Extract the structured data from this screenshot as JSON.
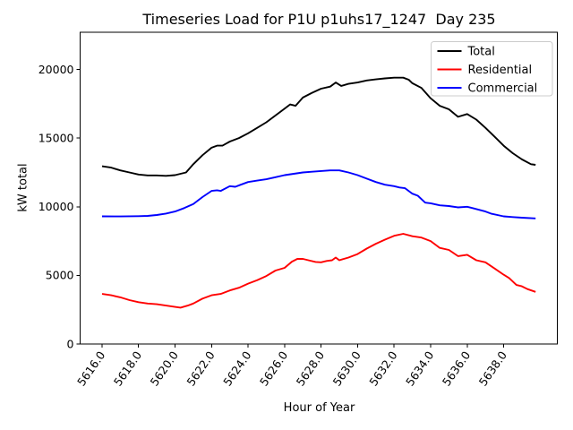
{
  "chart_data": {
    "type": "line",
    "title": "Timeseries Load for P1U p1uhs17_1247  Day 235",
    "xlabel": "Hour of Year",
    "ylabel": "kW total",
    "xlim": [
      5614.8,
      5640.95
    ],
    "ylim": [
      0,
      22710
    ],
    "grid": false,
    "legend_position": "upper right",
    "xtick_labels": [
      "5616.0",
      "5618.0",
      "5620.0",
      "5622.0",
      "5624.0",
      "5626.0",
      "5628.0",
      "5630.0",
      "5632.0",
      "5634.0",
      "5636.0",
      "5638.0"
    ],
    "ytick_labels": [
      "0",
      "5000",
      "10000",
      "15000",
      "20000"
    ],
    "series": [
      {
        "name": "Total",
        "color": "#000000",
        "points": [
          [
            5616,
            12950
          ],
          [
            5616.5,
            12850
          ],
          [
            5617,
            12650
          ],
          [
            5617.5,
            12500
          ],
          [
            5618,
            12350
          ],
          [
            5618.5,
            12280
          ],
          [
            5619,
            12280
          ],
          [
            5619.5,
            12250
          ],
          [
            5620,
            12300
          ],
          [
            5620.6,
            12500
          ],
          [
            5621,
            13100
          ],
          [
            5621.5,
            13750
          ],
          [
            5622,
            14300
          ],
          [
            5622.3,
            14450
          ],
          [
            5622.6,
            14450
          ],
          [
            5623,
            14750
          ],
          [
            5623.5,
            15000
          ],
          [
            5624,
            15350
          ],
          [
            5624.5,
            15750
          ],
          [
            5625,
            16150
          ],
          [
            5625.5,
            16650
          ],
          [
            5626,
            17150
          ],
          [
            5626.3,
            17450
          ],
          [
            5626.6,
            17350
          ],
          [
            5627,
            17950
          ],
          [
            5627.5,
            18300
          ],
          [
            5628,
            18600
          ],
          [
            5628.5,
            18750
          ],
          [
            5628.8,
            19050
          ],
          [
            5629.1,
            18800
          ],
          [
            5629.5,
            18950
          ],
          [
            5630,
            19050
          ],
          [
            5630.5,
            19200
          ],
          [
            5631,
            19280
          ],
          [
            5631.5,
            19350
          ],
          [
            5632,
            19400
          ],
          [
            5632.5,
            19400
          ],
          [
            5632.8,
            19250
          ],
          [
            5633,
            19000
          ],
          [
            5633.5,
            18650
          ],
          [
            5634,
            17900
          ],
          [
            5634.5,
            17350
          ],
          [
            5635,
            17100
          ],
          [
            5635.5,
            16550
          ],
          [
            5636,
            16750
          ],
          [
            5636.5,
            16350
          ],
          [
            5637,
            15750
          ],
          [
            5637.5,
            15100
          ],
          [
            5638,
            14450
          ],
          [
            5638.5,
            13900
          ],
          [
            5639,
            13450
          ],
          [
            5639.5,
            13100
          ],
          [
            5639.75,
            13050
          ]
        ]
      },
      {
        "name": "Residential",
        "color": "#ff0000",
        "points": [
          [
            5616,
            3650
          ],
          [
            5616.5,
            3550
          ],
          [
            5617,
            3400
          ],
          [
            5617.5,
            3200
          ],
          [
            5618,
            3050
          ],
          [
            5618.5,
            2950
          ],
          [
            5619,
            2900
          ],
          [
            5619.5,
            2800
          ],
          [
            5620,
            2700
          ],
          [
            5620.3,
            2650
          ],
          [
            5620.7,
            2800
          ],
          [
            5621,
            2950
          ],
          [
            5621.5,
            3300
          ],
          [
            5622,
            3550
          ],
          [
            5622.5,
            3650
          ],
          [
            5623,
            3900
          ],
          [
            5623.5,
            4100
          ],
          [
            5624,
            4400
          ],
          [
            5624.5,
            4650
          ],
          [
            5625,
            4950
          ],
          [
            5625.5,
            5350
          ],
          [
            5626,
            5550
          ],
          [
            5626.4,
            6000
          ],
          [
            5626.7,
            6200
          ],
          [
            5627,
            6200
          ],
          [
            5627.3,
            6100
          ],
          [
            5627.7,
            5975
          ],
          [
            5628,
            5950
          ],
          [
            5628.3,
            6050
          ],
          [
            5628.6,
            6100
          ],
          [
            5628.8,
            6300
          ],
          [
            5629,
            6100
          ],
          [
            5629.5,
            6300
          ],
          [
            5630,
            6550
          ],
          [
            5630.5,
            6950
          ],
          [
            5631,
            7300
          ],
          [
            5631.5,
            7600
          ],
          [
            5632,
            7880
          ],
          [
            5632.5,
            8030
          ],
          [
            5633,
            7850
          ],
          [
            5633.5,
            7750
          ],
          [
            5634,
            7500
          ],
          [
            5634.5,
            7000
          ],
          [
            5635,
            6850
          ],
          [
            5635.5,
            6400
          ],
          [
            5636,
            6500
          ],
          [
            5636.5,
            6100
          ],
          [
            5637,
            5950
          ],
          [
            5637.5,
            5500
          ],
          [
            5638,
            5050
          ],
          [
            5638.3,
            4800
          ],
          [
            5638.7,
            4300
          ],
          [
            5639,
            4200
          ],
          [
            5639.3,
            4000
          ],
          [
            5639.75,
            3800
          ]
        ]
      },
      {
        "name": "Commercial",
        "color": "#0000ff",
        "points": [
          [
            5616,
            9300
          ],
          [
            5617,
            9290
          ],
          [
            5618,
            9310
          ],
          [
            5618.5,
            9330
          ],
          [
            5619,
            9400
          ],
          [
            5619.5,
            9500
          ],
          [
            5620,
            9650
          ],
          [
            5620.5,
            9900
          ],
          [
            5621,
            10200
          ],
          [
            5621.5,
            10700
          ],
          [
            5622,
            11150
          ],
          [
            5622.3,
            11200
          ],
          [
            5622.5,
            11150
          ],
          [
            5623,
            11500
          ],
          [
            5623.3,
            11450
          ],
          [
            5623.6,
            11600
          ],
          [
            5624,
            11800
          ],
          [
            5624.5,
            11900
          ],
          [
            5625,
            12000
          ],
          [
            5625.5,
            12150
          ],
          [
            5626,
            12300
          ],
          [
            5626.5,
            12400
          ],
          [
            5627,
            12500
          ],
          [
            5627.5,
            12550
          ],
          [
            5628,
            12600
          ],
          [
            5628.5,
            12650
          ],
          [
            5629,
            12650
          ],
          [
            5629.5,
            12500
          ],
          [
            5630,
            12300
          ],
          [
            5630.5,
            12050
          ],
          [
            5631,
            11800
          ],
          [
            5631.5,
            11600
          ],
          [
            5632,
            11500
          ],
          [
            5632.3,
            11400
          ],
          [
            5632.6,
            11350
          ],
          [
            5633,
            10950
          ],
          [
            5633.3,
            10800
          ],
          [
            5633.7,
            10300
          ],
          [
            5634,
            10250
          ],
          [
            5634.5,
            10100
          ],
          [
            5635,
            10050
          ],
          [
            5635.5,
            9950
          ],
          [
            5636,
            10000
          ],
          [
            5636.3,
            9900
          ],
          [
            5637,
            9650
          ],
          [
            5637.3,
            9500
          ],
          [
            5638,
            9300
          ],
          [
            5638.5,
            9250
          ],
          [
            5639,
            9200
          ],
          [
            5639.75,
            9150
          ]
        ]
      }
    ]
  }
}
